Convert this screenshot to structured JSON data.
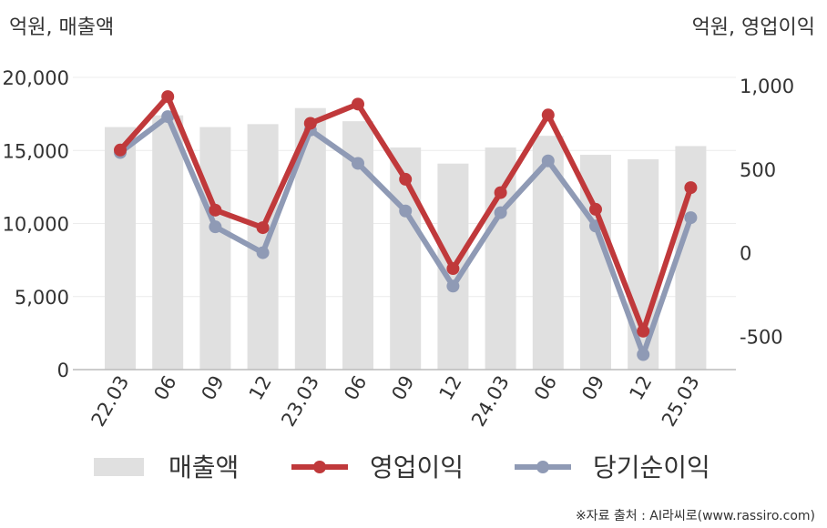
{
  "chart_data": {
    "type": "bar+line",
    "left_axis_unit": "억원, 매출액",
    "right_axis_unit": "억원, 영업이익",
    "categories": [
      "22.03",
      "06",
      "09",
      "12",
      "23.03",
      "06",
      "09",
      "12",
      "24.03",
      "06",
      "09",
      "12",
      "25.03"
    ],
    "left_axis": {
      "ylim": [
        0,
        20000
      ],
      "ticks": [
        "0",
        "5,000",
        "10,000",
        "15,000",
        "20,000"
      ],
      "tick_values": [
        0,
        5000,
        10000,
        15000,
        20000
      ]
    },
    "right_axis": {
      "ylim": [
        -700,
        1050
      ],
      "ticks": [
        "-500",
        "0",
        "500",
        "1,000"
      ],
      "tick_values": [
        -500,
        0,
        500,
        1000
      ]
    },
    "grid": true,
    "legend_position": "bottom",
    "series": [
      {
        "name": "매출액",
        "kind": "bar",
        "axis": "left",
        "color": "#e0e0e0",
        "values": [
          16600,
          17400,
          16600,
          16800,
          17900,
          17000,
          15200,
          14100,
          15200,
          16000,
          14700,
          14400,
          15300
        ]
      },
      {
        "name": "영업이익",
        "kind": "line",
        "axis": "right",
        "color": "#c0393b",
        "values": [
          615,
          935,
          255,
          150,
          775,
          890,
          440,
          -95,
          360,
          825,
          260,
          -470,
          390
        ]
      },
      {
        "name": "당기순이익",
        "kind": "line",
        "axis": "right",
        "color": "#8f9ab5",
        "values": [
          600,
          815,
          155,
          0,
          735,
          535,
          250,
          -200,
          240,
          550,
          160,
          -610,
          210
        ]
      }
    ],
    "source": "※자료 출처 : AI라씨로(www.rassiro.com)"
  }
}
